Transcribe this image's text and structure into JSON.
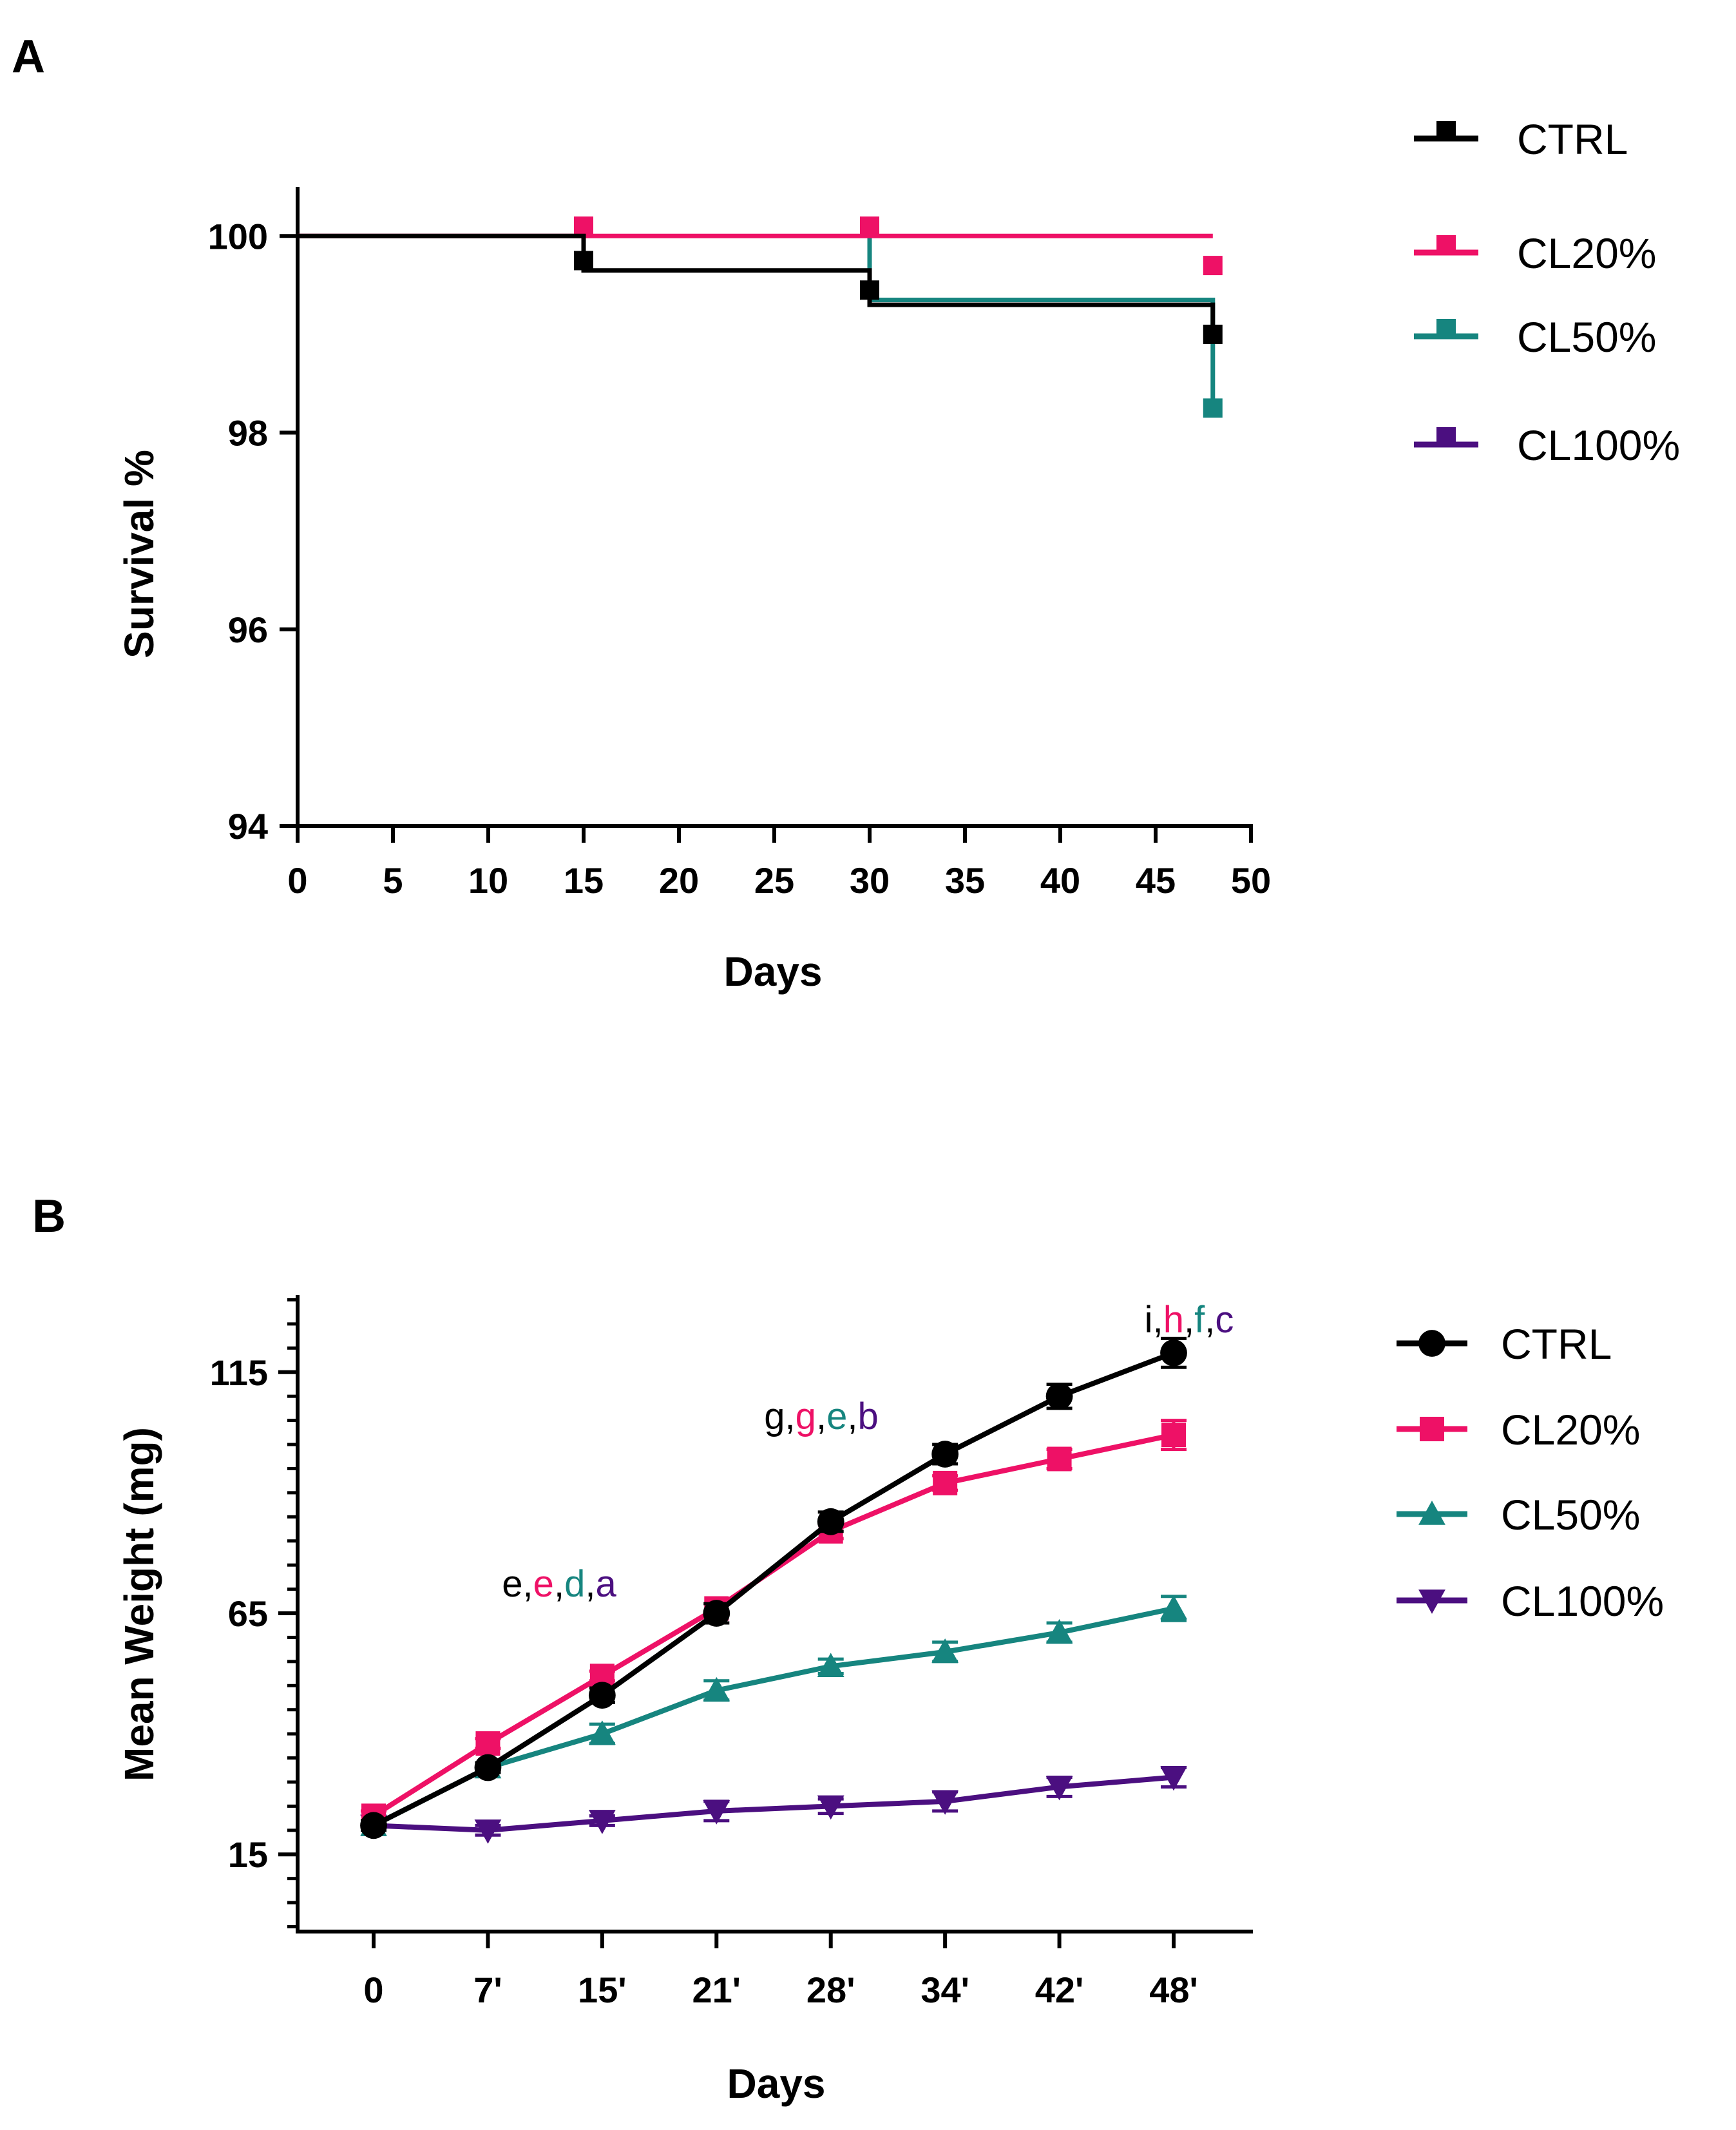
{
  "colors": {
    "CTRL": "#000000",
    "CL20%": "#ee1166",
    "CL50%": "#16857f",
    "CL100%": "#4b0f80"
  },
  "chart_data": [
    {
      "panel": "A",
      "type": "line",
      "subtype": "kaplan-meier-step",
      "title": "",
      "xlabel": "Days",
      "ylabel": "Survival %",
      "xlim": [
        0,
        50
      ],
      "ylim": [
        94,
        100.5
      ],
      "xticks": [
        "0",
        "5",
        "10",
        "15",
        "20",
        "25",
        "30",
        "35",
        "40",
        "45",
        "50"
      ],
      "xtick_values": [
        0,
        5,
        10,
        15,
        20,
        25,
        30,
        35,
        40,
        45,
        50
      ],
      "yticks": [
        "94",
        "96",
        "98",
        "100"
      ],
      "ytick_values": [
        94,
        96,
        98,
        100
      ],
      "legend": [
        "CTRL",
        "CL20%",
        "CL50%",
        "CL100%"
      ],
      "legend_position": "right",
      "series": [
        {
          "name": "CTRL",
          "marker": "square",
          "steps": [
            [
              0,
              100
            ],
            [
              15,
              99.65
            ],
            [
              30,
              99.3
            ],
            [
              48,
              98.95
            ]
          ],
          "censor_marks": [
            [
              15,
              99.75
            ],
            [
              30,
              99.45
            ],
            [
              48,
              99.0
            ]
          ]
        },
        {
          "name": "CL20%",
          "marker": "square",
          "steps": [
            [
              0,
              100
            ],
            [
              48,
              100
            ]
          ],
          "censor_marks": [
            [
              15,
              100.1
            ],
            [
              30,
              100.1
            ],
            [
              48,
              99.7
            ]
          ]
        },
        {
          "name": "CL50%",
          "marker": "square",
          "steps": [
            [
              30,
              100
            ],
            [
              30,
              99.35
            ],
            [
              48,
              99.35
            ],
            [
              48,
              98.2
            ]
          ],
          "censor_marks": [
            [
              48,
              98.25
            ]
          ]
        },
        {
          "name": "CL100%",
          "marker": "square",
          "steps": [],
          "censor_marks": []
        }
      ]
    },
    {
      "panel": "B",
      "type": "line",
      "title": "",
      "xlabel": "Days",
      "ylabel": "Mean Weight (mg)",
      "categories": [
        "0",
        "7'",
        "15'",
        "21'",
        "28'",
        "34'",
        "42'",
        "48'"
      ],
      "ylim": [
        -1,
        131
      ],
      "yticks": [
        "15",
        "65",
        "115"
      ],
      "ytick_values": [
        15,
        65,
        115
      ],
      "legend": [
        "CTRL",
        "CL20%",
        "CL50%",
        "CL100%"
      ],
      "legend_position": "right",
      "series": [
        {
          "name": "CTRL",
          "marker": "circle",
          "values": [
            21,
            33,
            48,
            65,
            84,
            98,
            110,
            119
          ],
          "errors": [
            1,
            1,
            1.5,
            2,
            2,
            2,
            2.5,
            3
          ]
        },
        {
          "name": "CL20%",
          "marker": "square",
          "values": [
            23,
            38,
            52,
            66,
            82,
            92,
            97,
            102
          ],
          "errors": [
            1,
            1,
            1,
            1,
            1.5,
            1.5,
            2,
            3
          ]
        },
        {
          "name": "CL50%",
          "marker": "triangle-up",
          "values": [
            21,
            33,
            40,
            49,
            54,
            57,
            61,
            66
          ],
          "errors": [
            1,
            1,
            2,
            2,
            1.5,
            2,
            2,
            2.5
          ]
        },
        {
          "name": "CL100%",
          "marker": "triangle-down",
          "values": [
            21,
            20,
            22,
            24,
            25,
            26,
            29,
            31
          ],
          "errors": [
            1,
            1,
            1,
            2,
            1.5,
            2,
            2,
            2
          ]
        }
      ],
      "annotations": [
        {
          "at": "15'",
          "letters": [
            {
              "text": "e",
              "series": "CTRL"
            },
            {
              "text": ",",
              "series": "CTRL"
            },
            {
              "text": "e",
              "series": "CL20%"
            },
            {
              "text": ",",
              "series": "CTRL"
            },
            {
              "text": "d",
              "series": "CL50%"
            },
            {
              "text": ",",
              "series": "CTRL"
            },
            {
              "text": "a",
              "series": "CL100%"
            }
          ]
        },
        {
          "at": "28'",
          "letters": [
            {
              "text": "g",
              "series": "CTRL"
            },
            {
              "text": ",",
              "series": "CTRL"
            },
            {
              "text": "g",
              "series": "CL20%"
            },
            {
              "text": ",",
              "series": "CTRL"
            },
            {
              "text": "e",
              "series": "CL50%"
            },
            {
              "text": ",",
              "series": "CTRL"
            },
            {
              "text": "b",
              "series": "CL100%"
            }
          ]
        },
        {
          "at": "48'",
          "letters": [
            {
              "text": "i",
              "series": "CTRL"
            },
            {
              "text": ",",
              "series": "CTRL"
            },
            {
              "text": "h",
              "series": "CL20%"
            },
            {
              "text": ",",
              "series": "CTRL"
            },
            {
              "text": "f",
              "series": "CL50%"
            },
            {
              "text": ",",
              "series": "CTRL"
            },
            {
              "text": "c",
              "series": "CL100%"
            }
          ]
        }
      ]
    }
  ]
}
